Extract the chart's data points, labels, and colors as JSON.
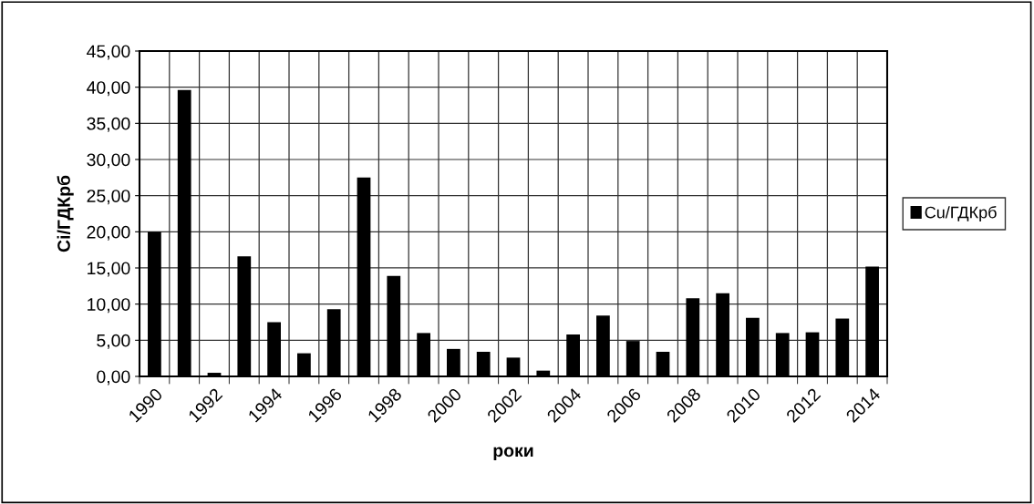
{
  "chart_data": {
    "type": "bar",
    "xlabel": "роки",
    "ylabel": "Сі/ГДКрб",
    "categories": [
      "1990",
      null,
      "1992",
      null,
      "1994",
      null,
      "1996",
      null,
      "1998",
      null,
      "2000",
      null,
      "2002",
      null,
      "2004",
      null,
      "2006",
      null,
      "2008",
      null,
      "2010",
      null,
      "2012",
      null,
      "2014"
    ],
    "series": [
      {
        "name": "Cu/ГДКрб",
        "color": "#000000",
        "values": [
          20.0,
          39.6,
          0.5,
          16.6,
          7.5,
          3.2,
          9.3,
          27.5,
          13.9,
          6.0,
          3.8,
          3.4,
          2.6,
          0.8,
          5.8,
          8.4,
          4.9,
          3.4,
          10.8,
          11.5,
          8.1,
          6.0,
          6.1,
          8.0,
          15.2
        ]
      }
    ],
    "ylim": [
      0,
      45
    ],
    "yticks": [
      {
        "value": 0,
        "label": "0,00"
      },
      {
        "value": 5,
        "label": "5,00"
      },
      {
        "value": 10,
        "label": "10,00"
      },
      {
        "value": 15,
        "label": "15,00"
      },
      {
        "value": 20,
        "label": "20,00"
      },
      {
        "value": 25,
        "label": "25,00"
      },
      {
        "value": 30,
        "label": "30,00"
      },
      {
        "value": 35,
        "label": "35,00"
      },
      {
        "value": 40,
        "label": "40,00"
      },
      {
        "value": 45,
        "label": "45,00"
      }
    ],
    "grid": true,
    "legend": "right"
  }
}
